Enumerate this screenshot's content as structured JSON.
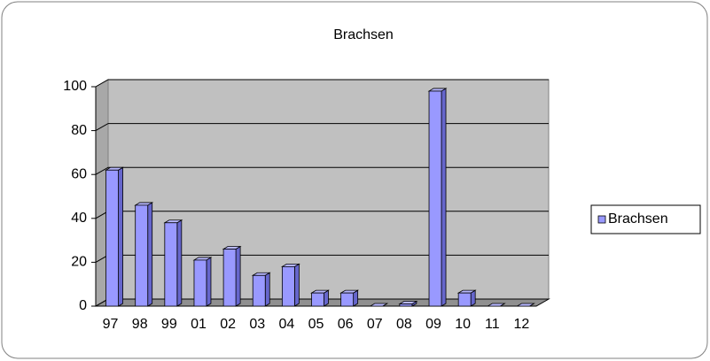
{
  "chart_data": {
    "type": "bar",
    "title": "Brachsen",
    "categories": [
      "97",
      "98",
      "99",
      "01",
      "02",
      "03",
      "04",
      "05",
      "06",
      "07",
      "08",
      "09",
      "10",
      "11",
      "12"
    ],
    "series": [
      {
        "name": "Brachsen",
        "color": "#9999ff",
        "values": [
          62,
          46,
          38,
          21,
          26,
          14,
          18,
          6,
          6,
          0,
          1,
          98,
          6,
          0,
          0
        ]
      }
    ],
    "ylim": [
      0,
      100
    ],
    "yticks": [
      0,
      20,
      40,
      60,
      80,
      100
    ],
    "grid": true,
    "legend": "right"
  }
}
